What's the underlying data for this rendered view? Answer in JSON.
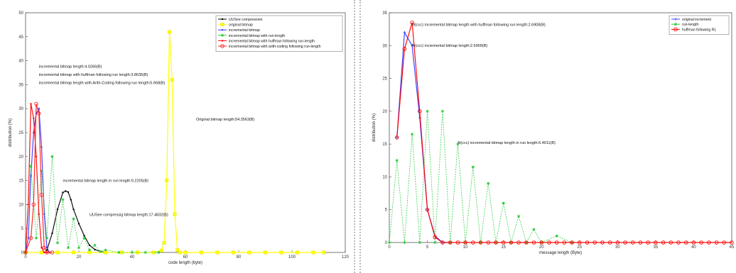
{
  "chart_data": [
    {
      "type": "line",
      "xlabel": "code length (byte)",
      "ylabel": "distribution (%)",
      "xlim": [
        0,
        120
      ],
      "ylim": [
        0,
        50
      ],
      "xticks": [
        0,
        20,
        40,
        60,
        80,
        100,
        120
      ],
      "yticks": [
        0,
        5,
        10,
        15,
        20,
        25,
        30,
        35,
        40,
        45,
        50
      ],
      "legend_position": "top-right",
      "series": [
        {
          "name": "UUSee compression",
          "color": "#000000",
          "marker": "dot",
          "x": [
            8,
            10,
            12,
            14,
            15,
            16,
            17,
            18,
            20,
            22,
            24,
            26,
            28,
            30
          ],
          "y": [
            0.5,
            4,
            9,
            12.5,
            12.8,
            12.6,
            11,
            9,
            6,
            3.5,
            1.5,
            0.6,
            0.2,
            0
          ]
        },
        {
          "name": "original bitmap",
          "color": "#ffff00",
          "marker": "square",
          "x": [
            0,
            6,
            12,
            18,
            24,
            30,
            36,
            42,
            48,
            51,
            52,
            53,
            54,
            55,
            56,
            57,
            58,
            60,
            66,
            72,
            78,
            84,
            90,
            96,
            102,
            108,
            112
          ],
          "y": [
            0,
            0,
            0,
            0,
            0,
            0,
            0,
            0,
            0,
            0.4,
            2,
            15,
            46,
            36,
            8,
            0.5,
            0,
            0,
            0,
            0,
            0,
            0,
            0,
            0,
            0,
            0,
            0
          ]
        },
        {
          "name": "incremental bitmap",
          "color": "#3c3cff",
          "marker": "dot",
          "x": [
            0,
            1,
            2,
            3,
            4,
            5,
            6,
            7,
            8,
            9
          ],
          "y": [
            0,
            3,
            16,
            25,
            29,
            30,
            22,
            8,
            1,
            0
          ]
        },
        {
          "name": "incremental bitmap with run-length",
          "color": "#2ecc40",
          "marker": "star",
          "x": [
            0,
            2,
            4,
            6,
            8,
            10,
            12,
            14,
            16,
            18,
            20,
            22,
            24,
            26,
            28,
            30,
            35,
            40,
            45,
            50
          ],
          "y": [
            0,
            18,
            3,
            17,
            3,
            20,
            2,
            11,
            1,
            7,
            1,
            3,
            0.5,
            1.5,
            0.2,
            0.5,
            0,
            0,
            0,
            0
          ]
        },
        {
          "name": "incremental bitmap with huffman following run-length",
          "color": "#ff0000",
          "marker": "dot",
          "x": [
            0,
            1,
            2,
            3,
            4,
            5,
            6,
            7,
            8
          ],
          "y": [
            0,
            10,
            31,
            28,
            20,
            8,
            1,
            0,
            0
          ]
        },
        {
          "name": "incremental bitmap with arith-coding following run-length",
          "color": "#ff2020",
          "marker": "circle",
          "x": [
            0,
            2,
            3,
            4,
            5,
            6,
            7,
            8,
            10
          ],
          "y": [
            0,
            3,
            10,
            31,
            29,
            12,
            1,
            0,
            0
          ]
        }
      ],
      "annotations": [
        {
          "text": "incremental bitmap length:4.0266(B)",
          "x": 5,
          "y": 38.5
        },
        {
          "text": "incremental bitmap with huffman following run length:3.8635(B)",
          "x": 5,
          "y": 36.8
        },
        {
          "text": "incremental bitmap length with Arith-Coding following run length:5.668(B)",
          "x": 5,
          "y": 35.1
        },
        {
          "text": "Original bitmap length:54.3563(B)",
          "x": 64,
          "y": 27.5
        },
        {
          "text": "incremental bitmap length in run length:9.2205(B)",
          "x": 14,
          "y": 14.7
        },
        {
          "text": "UUSee compressig bitmap length:17.4832(B)",
          "x": 24,
          "y": 7.6
        }
      ]
    },
    {
      "type": "line",
      "xlabel": "message length (Byte)",
      "ylabel": "distribution (%)",
      "xlim": [
        0,
        45
      ],
      "ylim": [
        0,
        35
      ],
      "xticks": [
        0,
        5,
        10,
        15,
        20,
        25,
        30,
        35,
        40,
        45
      ],
      "yticks": [
        0,
        5,
        10,
        15,
        20,
        25,
        30,
        35
      ],
      "legend_position": "top-right",
      "series": [
        {
          "name": "original increment",
          "color": "#3c3cff",
          "marker": "plus",
          "x": [
            1,
            2,
            3,
            4,
            5,
            6,
            7,
            8
          ],
          "y": [
            16,
            32,
            30,
            19,
            5,
            1,
            0,
            0
          ]
        },
        {
          "name": "run-length",
          "color": "#2ecc40",
          "marker": "star",
          "x": [
            0,
            1,
            2,
            3,
            4,
            5,
            6,
            7,
            8,
            9,
            10,
            11,
            12,
            13,
            14,
            15,
            16,
            17,
            18,
            19,
            20,
            22,
            24
          ],
          "y": [
            0,
            12.5,
            0,
            16.5,
            0,
            20,
            0,
            20,
            0,
            15,
            0,
            11.5,
            0,
            9,
            0,
            6,
            0,
            4,
            0,
            2,
            0,
            1,
            0
          ]
        },
        {
          "name": "huffman following RL",
          "color": "#ff0000",
          "marker": "circle",
          "x": [
            1,
            2,
            3,
            4,
            5,
            6,
            7,
            8,
            9,
            10,
            11,
            12,
            13,
            14,
            15,
            16,
            17,
            18,
            19,
            20,
            21,
            22,
            23,
            24,
            25,
            26,
            27,
            28,
            29,
            30,
            31,
            32,
            33,
            34,
            35,
            36,
            37,
            38,
            39,
            40,
            41,
            42,
            43,
            44,
            45
          ],
          "y": [
            16,
            29.5,
            33.5,
            20,
            5,
            0.8,
            0,
            0,
            0,
            0,
            0,
            0,
            0,
            0,
            0,
            0,
            0,
            0,
            0,
            0,
            0,
            0,
            0,
            0,
            0,
            0,
            0,
            0,
            0,
            0,
            0,
            0,
            0,
            0,
            0,
            0,
            0,
            0,
            0,
            0,
            0,
            0,
            0,
            0,
            0
          ]
        }
      ],
      "annotations": [
        {
          "text": "N(ccc) incremental bitmap length with huffman following run length:2.6908(B)",
          "x": 3,
          "y": 33.0
        },
        {
          "text": "N(ccc) incremental bitmap length:2.6909(B)",
          "x": 3,
          "y": 29.8
        },
        {
          "text": "N(ccc) incremental bitmap length in run length:6.4011(B)",
          "x": 9,
          "y": 15.0
        }
      ]
    }
  ]
}
